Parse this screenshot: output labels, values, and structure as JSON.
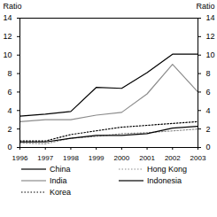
{
  "chart_data": {
    "type": "line",
    "ylabel": "Ratio",
    "y2label": "Ratio",
    "x": [
      1996,
      1997,
      1998,
      1999,
      2000,
      2001,
      2002,
      2003
    ],
    "xlim": [
      1996,
      2003
    ],
    "xticks": [
      1996,
      1997,
      1998,
      1999,
      2000,
      2001,
      2002,
      2003
    ],
    "ylim": [
      0,
      14
    ],
    "yticks": [
      0,
      2,
      4,
      6,
      8,
      10,
      12,
      14
    ],
    "y2lim": [
      0,
      14
    ],
    "y2ticks": [
      0,
      2,
      4,
      6,
      8,
      10,
      12,
      14
    ],
    "series": [
      {
        "name": "China",
        "color": "#000000",
        "line_style": "solid",
        "values": [
          3.4,
          3.6,
          3.9,
          6.5,
          6.4,
          8.1,
          10.1,
          10.1
        ]
      },
      {
        "name": "India",
        "color": "#8c8c8c",
        "line_style": "solid",
        "values": [
          2.8,
          3.0,
          3.0,
          3.5,
          3.8,
          5.8,
          9.0,
          6.0
        ]
      },
      {
        "name": "Korea",
        "color": "#000000",
        "line_style": "dotted",
        "values": [
          0.7,
          0.7,
          1.4,
          1.8,
          2.2,
          2.4,
          2.6,
          2.8
        ]
      },
      {
        "name": "Hong Kong",
        "color": "#8c8c8c",
        "line_style": "dotted",
        "values": [
          0.5,
          0.4,
          1.0,
          1.2,
          1.5,
          1.6,
          1.8,
          2.0
        ]
      },
      {
        "name": "Indonesia",
        "color": "#000000",
        "line_style": "solid",
        "values": [
          0.6,
          0.6,
          1.0,
          1.3,
          1.3,
          1.5,
          2.1,
          2.3
        ]
      }
    ]
  }
}
